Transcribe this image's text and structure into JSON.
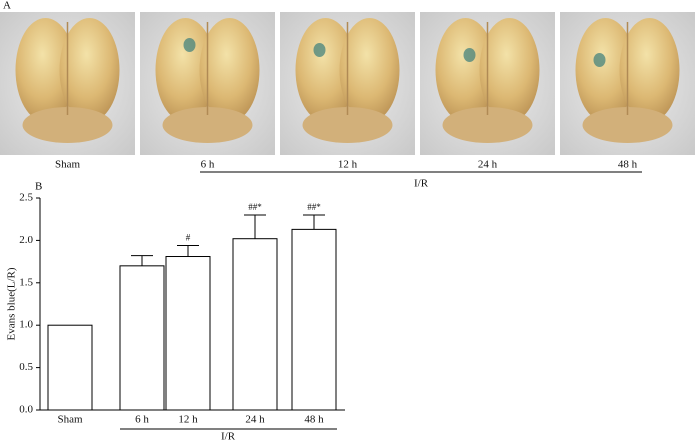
{
  "panel_a": {
    "label": "A",
    "photo_labels": [
      "Sham",
      "6 h",
      "12 h",
      "24 h",
      "48 h"
    ],
    "group_label": "I/R"
  },
  "chart_data": {
    "type": "bar",
    "panel_label": "B",
    "y_label": "Evans blue(L/R)",
    "categories": [
      "Sham",
      "6 h",
      "12 h",
      "24 h",
      "48 h"
    ],
    "values": [
      1.0,
      1.7,
      1.81,
      2.02,
      2.13
    ],
    "errors": [
      0,
      0.12,
      0.13,
      0.28,
      0.17
    ],
    "annotations": [
      null,
      null,
      "#",
      "##*",
      "##*"
    ],
    "group_label": "I/R",
    "color": "#ffffff",
    "ylim": [
      0,
      2.5
    ],
    "yticks": [
      {
        "value": 0,
        "label": "0.0"
      },
      0.5,
      {
        "value": 1,
        "label": "1.0"
      },
      1.5,
      {
        "value": 2,
        "label": "2.0"
      },
      2.5
    ]
  }
}
